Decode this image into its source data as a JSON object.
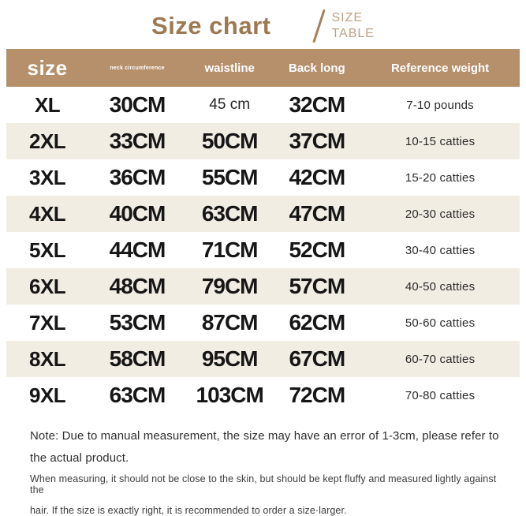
{
  "header": {
    "title": "Size chart",
    "subtitle_line1": "SIZE",
    "subtitle_line2": "TABLE"
  },
  "chart_data": {
    "type": "table",
    "title": "Size chart",
    "columns": [
      "size",
      "neck circumference",
      "waistline",
      "Back long",
      "Reference weight"
    ],
    "rows": [
      [
        "XL",
        "30CM",
        "45 cm",
        "32CM",
        "7-10 pounds"
      ],
      [
        "2XL",
        "33CM",
        "50CM",
        "37CM",
        "10-15 catties"
      ],
      [
        "3XL",
        "36CM",
        "55CM",
        "42CM",
        "15-20 catties"
      ],
      [
        "4XL",
        "40CM",
        "63CM",
        "47CM",
        "20-30 catties"
      ],
      [
        "5XL",
        "44CM",
        "71CM",
        "52CM",
        "30-40 catties"
      ],
      [
        "6XL",
        "48CM",
        "79CM",
        "57CM",
        "40-50 catties"
      ],
      [
        "7XL",
        "53CM",
        "87CM",
        "62CM",
        "50-60 catties"
      ],
      [
        "8XL",
        "58CM",
        "95CM",
        "67CM",
        "60-70 catties"
      ],
      [
        "9XL",
        "63CM",
        "103CM",
        "72CM",
        "70-80 catties"
      ]
    ]
  },
  "notes": {
    "lines": [
      {
        "text": "Note: Due to manual measurement, the size may have an error of 1-3cm, please refer to",
        "style": "lg"
      },
      {
        "text": "the actual product.",
        "style": "lg"
      },
      {
        "text": "When measuring, it should not be close to the skin, but should be kept fluffy and measured lightly against the",
        "style": "sm"
      },
      {
        "text": "hair. If the size is exactly right, it is recommended to order a size·larger.",
        "style": "sm"
      }
    ]
  },
  "colors": {
    "header_band": "#b6906b",
    "stripe": "#f2ede3",
    "title_brown": "#9d7952",
    "subtitle_tan": "#bfa183",
    "text_dark": "#161616"
  }
}
